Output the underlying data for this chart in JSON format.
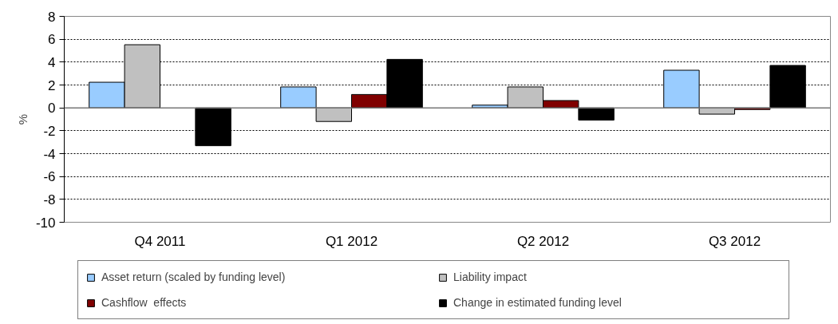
{
  "chart_data": {
    "type": "bar",
    "ylabel": "%",
    "categories": [
      "Q4 2011",
      "Q1 2012",
      "Q2 2012",
      "Q3 2012"
    ],
    "series": [
      {
        "name": "Asset return (scaled by funding level)",
        "color": "#99ccff",
        "values": [
          2.24,
          1.83,
          0.24,
          3.29
        ]
      },
      {
        "name": "Liability impact",
        "color": "#c0c0c0",
        "values": [
          5.52,
          -1.19,
          1.83,
          -0.55
        ]
      },
      {
        "name": "Cashflow  effects",
        "color": "#800000",
        "values": [
          null,
          1.17,
          0.64,
          -0.14
        ]
      },
      {
        "name": "Change in estimated funding level",
        "color": "#000000",
        "values": [
          -3.31,
          4.24,
          -1.07,
          3.71
        ]
      }
    ],
    "ylim": [
      -10,
      8
    ],
    "yticks": [
      -10,
      -8,
      -6,
      -4,
      -2,
      0,
      2,
      4,
      6,
      8
    ],
    "grid": "y",
    "legend": "bottom"
  }
}
